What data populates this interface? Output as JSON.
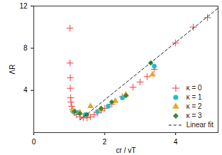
{
  "chart_data": {
    "type": "scatter",
    "x_label": "cr / vT",
    "y_label": "ΛR",
    "xlim": [
      0,
      5.2
    ],
    "xticks": [
      0,
      2,
      4
    ],
    "ylim": [
      0,
      12
    ],
    "yticks": [
      4,
      8,
      12
    ],
    "legend": "lower right",
    "series": [
      {
        "name": "κ = 0",
        "color": "#e8413c",
        "marker": "plus",
        "x": [
          1.02,
          1.02,
          1.03,
          1.03,
          1.04,
          1.05,
          1.07,
          1.1,
          1.15,
          1.2,
          1.3,
          1.4,
          1.5,
          1.6,
          1.7,
          1.8,
          1.9,
          2.0,
          2.2,
          2.5,
          2.8,
          3.0,
          3.2,
          3.4,
          4.0,
          4.5,
          4.9
        ],
        "values": [
          9.9,
          6.6,
          5.2,
          4.2,
          3.3,
          2.9,
          2.5,
          2.2,
          1.9,
          1.7,
          1.5,
          1.4,
          1.4,
          1.5,
          1.7,
          1.9,
          2.1,
          2.3,
          2.7,
          3.4,
          4.3,
          4.8,
          5.3,
          6.0,
          8.5,
          10.0,
          10.9
        ]
      },
      {
        "name": "κ = 1",
        "color": "#2cb8c8",
        "marker": "circle",
        "x": [
          1.12,
          1.25,
          1.45,
          1.8,
          2.1,
          2.5,
          3.4
        ],
        "values": [
          2.0,
          1.9,
          1.7,
          2.0,
          2.5,
          3.3,
          6.3
        ]
      },
      {
        "name": "κ = 2",
        "color": "#f4a21e",
        "marker": "triangle",
        "x": [
          1.1,
          1.3,
          1.6,
          1.9,
          2.3,
          2.6,
          3.35
        ],
        "values": [
          2.1,
          1.9,
          2.5,
          2.2,
          3.0,
          3.6,
          5.5
        ]
      },
      {
        "name": "κ = 3",
        "color": "#2e8b3e",
        "marker": "diamond",
        "x": [
          1.15,
          1.3,
          1.5,
          1.9,
          2.2,
          2.6,
          3.3
        ],
        "values": [
          2.0,
          1.8,
          1.7,
          2.3,
          2.9,
          3.5,
          6.6
        ]
      },
      {
        "name": "Linear fit",
        "color": "#222222",
        "type": "line",
        "line_style": "dashed",
        "x": [
          1.3,
          5.2
        ],
        "values": [
          1.2,
          11.8
        ]
      }
    ]
  }
}
